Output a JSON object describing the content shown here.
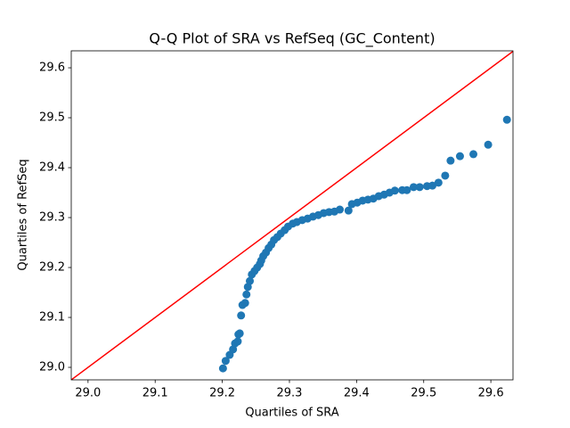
{
  "chart_data": {
    "type": "scatter",
    "title": "Q-Q Plot of SRA vs RefSeq (GC_Content)",
    "x_label": "Quartiles of SRA",
    "y_label": "Quartiles of RefSeq",
    "x": [
      29.201,
      29.205,
      29.211,
      29.216,
      29.219,
      29.223,
      29.224,
      29.226,
      29.228,
      29.23,
      29.234,
      29.236,
      29.238,
      29.241,
      29.244,
      29.248,
      29.252,
      29.256,
      29.258,
      29.261,
      29.265,
      29.269,
      29.273,
      29.277,
      29.282,
      29.287,
      29.293,
      29.298,
      29.305,
      29.311,
      29.319,
      29.327,
      29.335,
      29.343,
      29.351,
      29.359,
      29.367,
      29.375,
      29.388,
      29.393,
      29.401,
      29.409,
      29.417,
      29.425,
      29.433,
      29.441,
      29.449,
      29.457,
      29.468,
      29.475,
      29.485,
      29.494,
      29.505,
      29.513,
      29.522,
      29.532,
      29.54,
      29.554,
      29.574,
      29.596,
      29.624
    ],
    "values": [
      28.998,
      29.013,
      29.025,
      29.036,
      29.048,
      29.052,
      29.066,
      29.068,
      29.104,
      29.125,
      29.129,
      29.146,
      29.161,
      29.173,
      29.186,
      29.193,
      29.2,
      29.207,
      29.214,
      29.223,
      29.23,
      29.239,
      29.246,
      29.255,
      29.261,
      29.268,
      29.275,
      29.282,
      29.288,
      29.291,
      29.295,
      29.298,
      29.302,
      29.305,
      29.309,
      29.311,
      29.312,
      29.316,
      29.314,
      29.327,
      29.33,
      29.334,
      29.336,
      29.338,
      29.343,
      29.346,
      29.35,
      29.354,
      29.355,
      29.355,
      29.361,
      29.361,
      29.363,
      29.364,
      29.37,
      29.384,
      29.414,
      29.423,
      29.427,
      29.446,
      29.496
    ],
    "color": "#1f77b4",
    "reference_line_color": "#ff0000",
    "xlim": [
      28.975,
      29.633
    ],
    "ylim": [
      28.975,
      29.634
    ],
    "xticks": [
      {
        "value": 29.0,
        "label": "29.0"
      },
      29.1,
      29.2,
      29.3,
      29.4,
      29.5,
      29.6
    ],
    "yticks": [
      {
        "value": 29.0,
        "label": "29.0"
      },
      29.1,
      29.2,
      29.3,
      29.4,
      29.5,
      29.6
    ]
  }
}
